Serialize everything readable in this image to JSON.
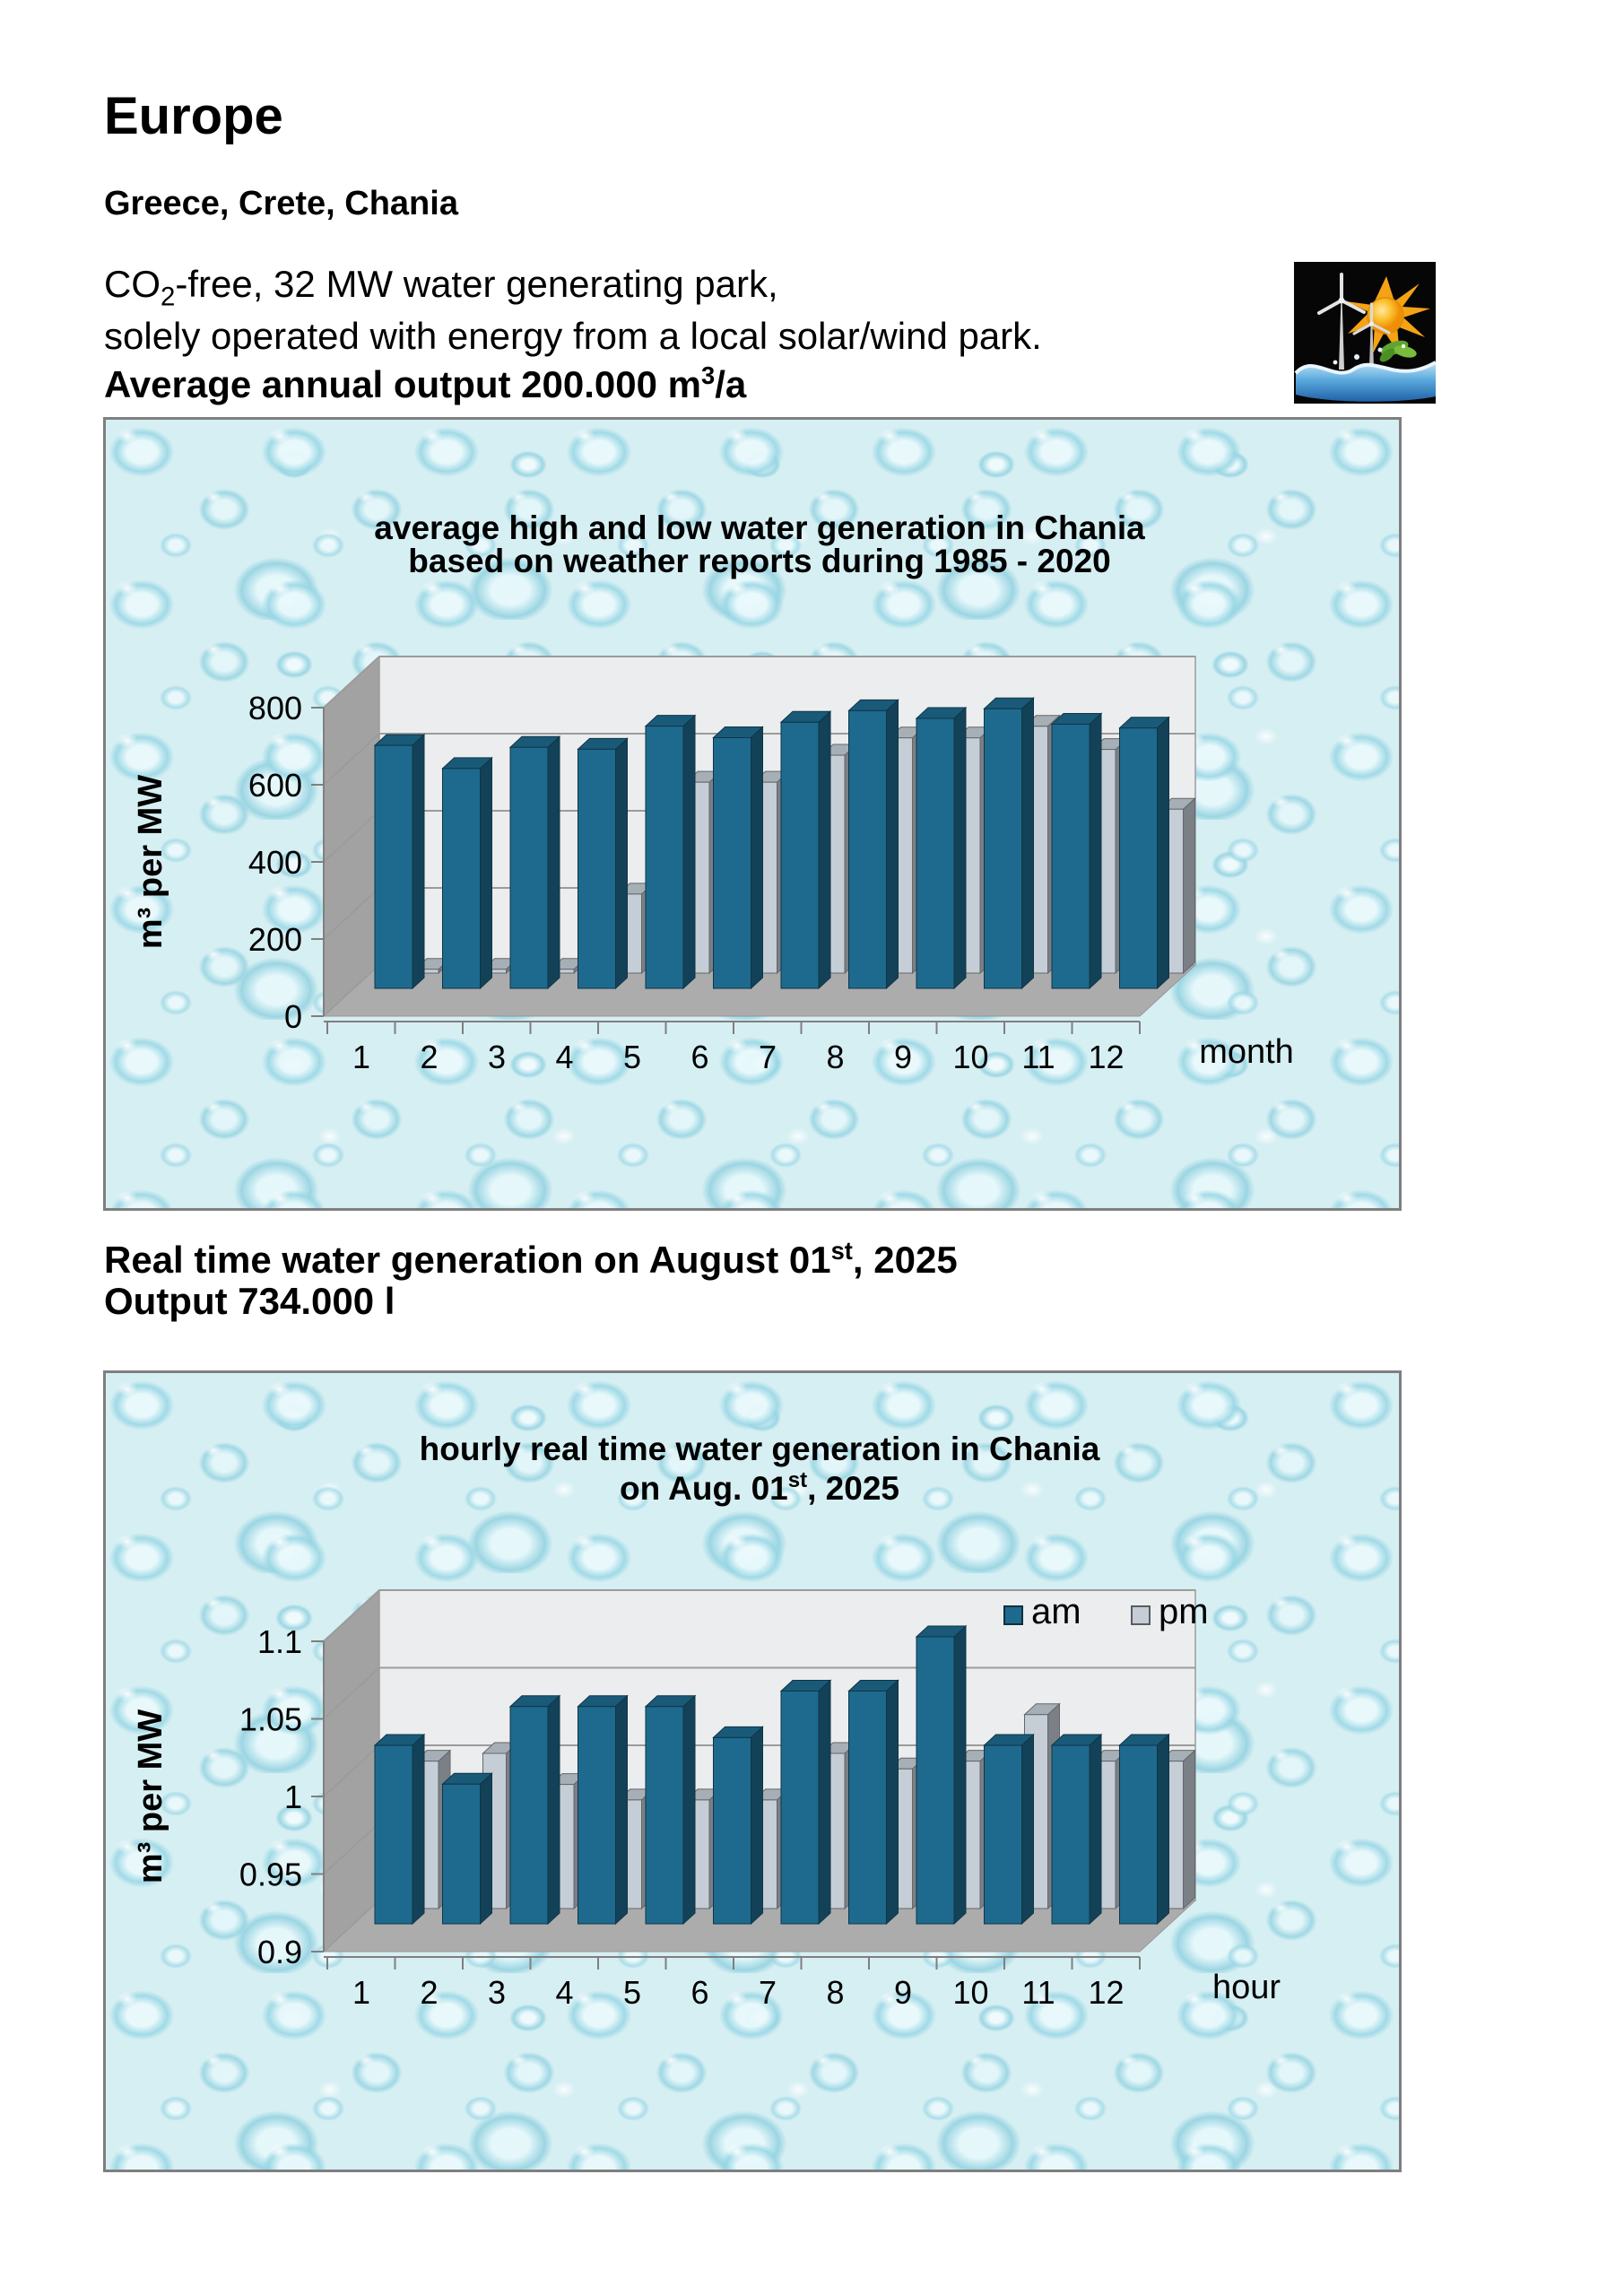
{
  "page": {
    "title": "Europe",
    "subtitle": "Greece, Crete, Chania",
    "intro": {
      "line1_pre": "CO",
      "line1_sub": "2",
      "line1_post": "-free, 32 MW water generating park,",
      "line2": "solely operated with energy from a local solar/wind park.",
      "line3_pre": "Average annual output 200.000 m",
      "line3_sup": "3",
      "line3_post": "/a"
    },
    "realtime": {
      "line1_pre": "Real time water generation on August 01",
      "line1_sup": "st",
      "line1_post": ", 2025",
      "line2": "Output 734.000 l"
    },
    "illustration": "solar-wind-water-park"
  },
  "chart_data": [
    {
      "type": "bar",
      "projection": "3d-column",
      "title": "average high and low water generation in Chania",
      "subtitle": "based on weather reports during 1985 - 2020",
      "xlabel": "month",
      "ylabel": "m³ per MW",
      "categories": [
        "1",
        "2",
        "3",
        "4",
        "5",
        "6",
        "7",
        "8",
        "9",
        "10",
        "11",
        "12"
      ],
      "ylim": [
        0,
        800
      ],
      "yticks": [
        0,
        200,
        400,
        600,
        800
      ],
      "ytick_labels": [
        "0",
        "200",
        "400",
        "600",
        "800"
      ],
      "grid": true,
      "legend_position": "none",
      "series": [
        {
          "name": "high",
          "color": "#1E6A8E",
          "values": [
            630,
            570,
            625,
            620,
            680,
            650,
            690,
            720,
            700,
            725,
            685,
            675
          ]
        },
        {
          "name": "low",
          "color": "#C5CED6",
          "values": [
            10,
            10,
            10,
            205,
            495,
            495,
            565,
            610,
            610,
            640,
            580,
            425
          ]
        }
      ]
    },
    {
      "type": "bar",
      "projection": "3d-column",
      "title": "hourly real time water generation in Chania",
      "subtitle_parts": [
        {
          "text": "on Aug. 01"
        },
        {
          "text": "st",
          "sup": true
        },
        {
          "text": ", 2025"
        }
      ],
      "xlabel": "hour",
      "ylabel": "m³ per MW",
      "categories": [
        "1",
        "2",
        "3",
        "4",
        "5",
        "6",
        "7",
        "8",
        "9",
        "10",
        "11",
        "12"
      ],
      "ylim": [
        0.9,
        1.1
      ],
      "yticks": [
        0.9,
        0.95,
        1,
        1.05,
        1.1
      ],
      "ytick_labels": [
        "0.9",
        "0.95",
        "1",
        "1.05",
        "1.1"
      ],
      "grid": true,
      "legend_position": "top-right",
      "legend": [
        "am",
        "pm"
      ],
      "series": [
        {
          "name": "am",
          "color": "#1E6A8E",
          "values": [
            1.015,
            0.99,
            1.04,
            1.04,
            1.04,
            1.02,
            1.05,
            1.05,
            1.085,
            1.015,
            1.015,
            1.015
          ]
        },
        {
          "name": "pm",
          "color": "#C5CED6",
          "values": [
            0.995,
            1.0,
            0.98,
            0.97,
            0.97,
            0.97,
            1.0,
            0.99,
            0.995,
            1.025,
            0.995,
            0.995
          ]
        }
      ]
    }
  ],
  "colors": {
    "bar_high_front": "#1E6A8E",
    "bar_low_front": "#C5CED6",
    "plot_wall": "#ECEDEE",
    "plot_floor": "#ACACAC",
    "plot_side_wall": "#A2A2A2",
    "gridline": "#9B9B9B",
    "box_border": "#7F7F7F",
    "background_tint": "#D6EFF3"
  }
}
